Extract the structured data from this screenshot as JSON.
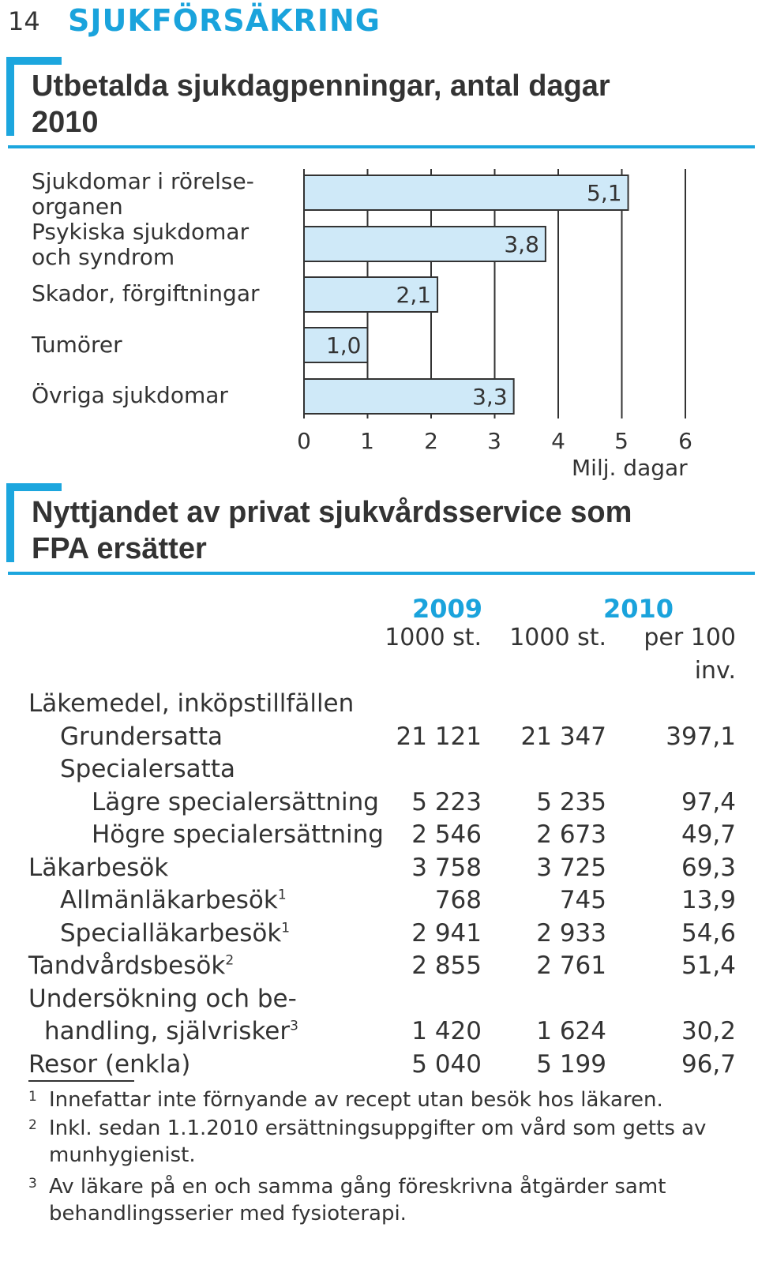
{
  "header": {
    "page_number": "14",
    "section": "SJUKFÖRSÄKRING"
  },
  "chart_title": [
    "Utbetalda sjukdagpenningar, antal dagar",
    "2010"
  ],
  "chart_data": {
    "type": "bar",
    "orientation": "horizontal",
    "categories": [
      [
        "Sjukdomar i rörelse-",
        "organen"
      ],
      [
        "Psykiska sjukdomar",
        "och syndrom"
      ],
      [
        "Skador, förgiftningar"
      ],
      [
        "Tumörer"
      ],
      [
        "Övriga sjukdomar"
      ]
    ],
    "values": [
      5.1,
      3.8,
      2.1,
      1.0,
      3.3
    ],
    "value_labels": [
      "5,1",
      "3,8",
      "2,1",
      "1,0",
      "3,3"
    ],
    "xlim": [
      0,
      6
    ],
    "xticks": [
      "0",
      "1",
      "2",
      "3",
      "4",
      "5",
      "6"
    ],
    "xlabel": "Milj. dagar",
    "grid": true,
    "bar_color": "#cfe9f8",
    "accent_color": "#1ca6de"
  },
  "table_title": [
    "Nyttjandet av privat sjukvårdsservice som",
    "FPA ersätter"
  ],
  "table": {
    "years": [
      "2009",
      "2010"
    ],
    "col_heads": [
      "1000 st.",
      "1000 st.",
      "per 100",
      "inv."
    ],
    "rows": [
      {
        "label": "Läkemedel, inköpstillfällen",
        "sup": "",
        "indent": 0,
        "values": [
          "",
          "",
          ""
        ]
      },
      {
        "label": "Grundersatta",
        "sup": "",
        "indent": 1,
        "values": [
          "21 121",
          "21 347",
          "397,1"
        ]
      },
      {
        "label": "Specialersatta",
        "sup": "",
        "indent": 1,
        "values": [
          "",
          "",
          ""
        ]
      },
      {
        "label": "Lägre specialersättning",
        "sup": "",
        "indent": 2,
        "values": [
          "5 223",
          "5 235",
          "97,4"
        ]
      },
      {
        "label": "Högre specialersättning",
        "sup": "",
        "indent": 2,
        "values": [
          "2 546",
          "2 673",
          "49,7"
        ]
      },
      {
        "label": "Läkarbesök",
        "sup": "",
        "indent": 0,
        "values": [
          "3 758",
          "3 725",
          "69,3"
        ]
      },
      {
        "label": "Allmänläkarbesök",
        "sup": "1",
        "indent": 1,
        "values": [
          "768",
          "745",
          "13,9"
        ]
      },
      {
        "label": "Specialläkarbesök",
        "sup": "1",
        "indent": 1,
        "values": [
          "2 941",
          "2 933",
          "54,6"
        ]
      },
      {
        "label": "Tandvårdsbesök",
        "sup": "2",
        "indent": 0,
        "values": [
          "2 855",
          "2 761",
          "51,4"
        ]
      },
      {
        "label": "Undersökning och be-",
        "sup": "",
        "indent": 0,
        "values": [
          "",
          "",
          ""
        ]
      },
      {
        "label": "handling, självrisker",
        "sup": "3",
        "indent": 0.5,
        "values": [
          "1 420",
          "1 624",
          "30,2"
        ]
      },
      {
        "label": "Resor (enkla)",
        "sup": "",
        "indent": 0,
        "values": [
          "5 040",
          "5 199",
          "96,7"
        ]
      }
    ]
  },
  "footnotes": [
    {
      "mark": "1",
      "text": "Innefattar inte förnyande av recept utan besök hos läkaren."
    },
    {
      "mark": "2",
      "text": "Inkl. sedan 1.1.2010 ersättningsuppgifter om vård som getts av munhygienist."
    },
    {
      "mark": "3",
      "text": "Av läkare på en och samma gång föreskrivna åtgärder samt behandlingsserier med fysioterapi."
    }
  ]
}
